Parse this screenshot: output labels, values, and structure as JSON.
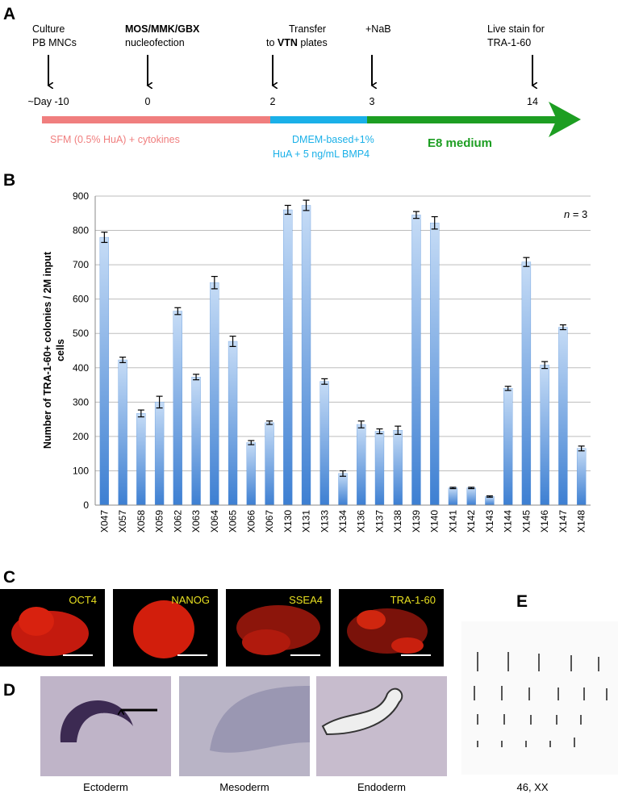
{
  "panel_letters": [
    "A",
    "B",
    "C",
    "D",
    "E"
  ],
  "timeline": {
    "steps": [
      {
        "line1": "Culture",
        "line2": "PB MNCs",
        "day": "~Day -10"
      },
      {
        "line1": "MOS/MMK/GBX",
        "line2": "nucleofection",
        "day": "0"
      },
      {
        "line1": "Transfer",
        "line2_parts": [
          "to ",
          "VTN",
          " plates"
        ],
        "day": "2"
      },
      {
        "line1": "+NaB",
        "day": "3"
      },
      {
        "line1": "Live stain for",
        "line2": "TRA-1-60",
        "day": "14"
      }
    ],
    "phases": [
      {
        "lines": [
          "SFM (0.5% HuA) + cytokines"
        ],
        "color": "#f07e7e"
      },
      {
        "lines": [
          "DMEM-based+1%",
          "HuA + 5 ng/mL BMP4"
        ],
        "color": "#1ab0e8"
      },
      {
        "lines": [
          "E8 medium"
        ],
        "color": "#1d9e22"
      }
    ]
  },
  "chart_data": {
    "type": "bar",
    "y_label_lines": [
      "Number of TRA-1-60+ colonies / 2M input",
      "cells"
    ],
    "annotation_parts": [
      "n",
      " = 3"
    ],
    "categories": [
      "X047",
      "X057",
      "X058",
      "X059",
      "X062",
      "X063",
      "X064",
      "X065",
      "X066",
      "X067",
      "X130",
      "X131",
      "X133",
      "X134",
      "X136",
      "X137",
      "X138",
      "X139",
      "X140",
      "X141",
      "X142",
      "X143",
      "X144",
      "X145",
      "X146",
      "X147",
      "X148"
    ],
    "values": [
      780,
      423,
      267,
      300,
      565,
      373,
      648,
      477,
      182,
      240,
      860,
      873,
      360,
      92,
      235,
      215,
      218,
      845,
      822,
      50,
      50,
      25,
      340,
      708,
      408,
      518,
      165
    ],
    "errors": [
      15,
      8,
      10,
      17,
      10,
      8,
      18,
      15,
      6,
      5,
      13,
      15,
      8,
      8,
      10,
      7,
      12,
      10,
      18,
      2,
      2,
      2,
      6,
      13,
      10,
      7,
      7
    ],
    "color": "#4a8ad8",
    "ylim": [
      0,
      900
    ],
    "yticks": [
      0,
      100,
      200,
      300,
      400,
      500,
      600,
      700,
      800,
      900
    ],
    "grid": true
  },
  "stains": [
    "OCT4",
    "NANOG",
    "SSEA4",
    "TRA-1-60"
  ],
  "germ_layers": [
    "Ectoderm",
    "Mesoderm",
    "Endoderm"
  ],
  "karyotype": "46, XX"
}
